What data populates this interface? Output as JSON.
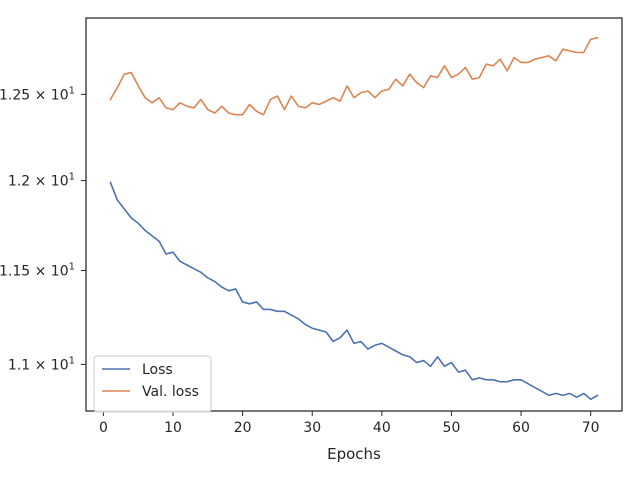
{
  "chart_data": {
    "type": "line",
    "xlabel": "Epochs",
    "ylabel": "",
    "y_scale": "log",
    "xlim": [
      -2.5,
      74.5
    ],
    "ylim": [
      10.76,
      12.96
    ],
    "grid": false,
    "legend_position": "lower-left",
    "x_ticks": [
      0,
      10,
      20,
      30,
      40,
      50,
      60,
      70
    ],
    "x_tick_labels": [
      "0",
      "10",
      "20",
      "30",
      "40",
      "50",
      "60",
      "70"
    ],
    "y_ticks": [
      11.0,
      11.5,
      12.0,
      12.5
    ],
    "y_tick_labels": [
      {
        "base": "1.1 × 10",
        "exp": "1"
      },
      {
        "base": "1.15 × 10",
        "exp": "1"
      },
      {
        "base": "1.2 × 10",
        "exp": "1"
      },
      {
        "base": "1.25 × 10",
        "exp": "1"
      }
    ],
    "x": [
      1,
      2,
      3,
      4,
      5,
      6,
      7,
      8,
      9,
      10,
      11,
      12,
      13,
      14,
      15,
      16,
      17,
      18,
      19,
      20,
      21,
      22,
      23,
      24,
      25,
      26,
      27,
      28,
      29,
      30,
      31,
      32,
      33,
      34,
      35,
      36,
      37,
      38,
      39,
      40,
      41,
      42,
      43,
      44,
      45,
      46,
      47,
      48,
      49,
      50,
      51,
      52,
      53,
      54,
      55,
      56,
      57,
      58,
      59,
      60,
      61,
      62,
      63,
      64,
      65,
      66,
      67,
      68,
      69,
      70,
      71
    ],
    "series": [
      {
        "name": "Loss",
        "color": "#4c72b0",
        "values": [
          11.99,
          11.89,
          11.84,
          11.79,
          11.76,
          11.72,
          11.69,
          11.66,
          11.59,
          11.6,
          11.55,
          11.53,
          11.51,
          11.49,
          11.46,
          11.44,
          11.41,
          11.39,
          11.4,
          11.33,
          11.32,
          11.33,
          11.29,
          11.29,
          11.28,
          11.28,
          11.26,
          11.24,
          11.21,
          11.19,
          11.18,
          11.17,
          11.12,
          11.14,
          11.18,
          11.11,
          11.12,
          11.08,
          11.1,
          11.11,
          11.09,
          11.07,
          11.05,
          11.04,
          11.01,
          11.02,
          10.99,
          11.04,
          10.99,
          11.01,
          10.96,
          10.97,
          10.92,
          10.93,
          10.92,
          10.92,
          10.91,
          10.91,
          10.92,
          10.92,
          10.9,
          10.88,
          10.86,
          10.84,
          10.85,
          10.84,
          10.85,
          10.83,
          10.85,
          10.82,
          10.84
        ]
      },
      {
        "name": "Val. loss",
        "color": "#dd8452",
        "values": [
          12.47,
          12.54,
          12.62,
          12.63,
          12.55,
          12.48,
          12.45,
          12.48,
          12.42,
          12.41,
          12.45,
          12.43,
          12.42,
          12.47,
          12.41,
          12.39,
          12.43,
          12.39,
          12.38,
          12.38,
          12.44,
          12.4,
          12.38,
          12.47,
          12.49,
          12.41,
          12.49,
          12.43,
          12.42,
          12.45,
          12.44,
          12.46,
          12.48,
          12.46,
          12.55,
          12.48,
          12.51,
          12.52,
          12.48,
          12.52,
          12.53,
          12.59,
          12.55,
          12.62,
          12.57,
          12.54,
          12.61,
          12.6,
          12.67,
          12.6,
          12.62,
          12.66,
          12.59,
          12.6,
          12.68,
          12.67,
          12.71,
          12.64,
          12.72,
          12.69,
          12.69,
          12.71,
          12.72,
          12.73,
          12.7,
          12.77,
          12.76,
          12.75,
          12.75,
          12.83,
          12.84
        ]
      }
    ]
  }
}
